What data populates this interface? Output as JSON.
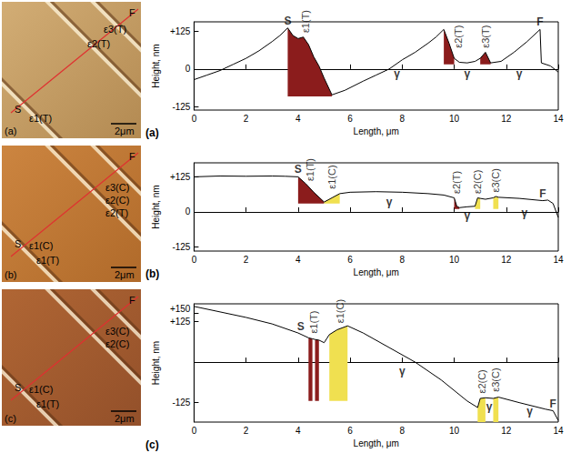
{
  "afm_images": [
    {
      "panel": "(a)",
      "labels": [
        "F",
        "ε3(T)",
        "ε2(T)",
        "S",
        "ε1(T)"
      ],
      "scale_bar": "2μm"
    },
    {
      "panel": "(b)",
      "labels": [
        "F",
        "ε3(C)",
        "ε2(C)",
        "ε2(T)",
        "S",
        "ε1(C)",
        "ε1(T)"
      ],
      "scale_bar": "2μm"
    },
    {
      "panel": "(c)",
      "labels": [
        "F",
        "ε3(C)",
        "ε2(C)",
        "S",
        "ε1(C)",
        "ε1(T)"
      ],
      "scale_bar": "2μm"
    }
  ],
  "chart_data": [
    {
      "type": "line",
      "panel": "(a)",
      "x_label": "Length, μm",
      "y_label": "Height, nm",
      "color": "#000000",
      "x": [
        0,
        0.5,
        1,
        1.5,
        2,
        2.5,
        3,
        3.3,
        3.6,
        3.8,
        4.0,
        4.2,
        4.4,
        4.6,
        4.8,
        5.0,
        5.3,
        5.8,
        6.5,
        7,
        7.5,
        8,
        8.5,
        9,
        9.3,
        9.6,
        9.8,
        10.0,
        10.2,
        10.5,
        10.8,
        11.0,
        11.2,
        11.4,
        11.8,
        12.3,
        12.8,
        13.3,
        13.35,
        13.7,
        14
      ],
      "values": [
        -35,
        -20,
        -5,
        15,
        35,
        60,
        90,
        110,
        135,
        110,
        100,
        105,
        80,
        40,
        10,
        -30,
        -85,
        -70,
        -40,
        -20,
        0,
        30,
        55,
        85,
        105,
        130,
        85,
        35,
        22,
        20,
        25,
        35,
        55,
        20,
        25,
        55,
        90,
        130,
        20,
        10,
        -10
      ],
      "xlim": [
        0,
        14
      ],
      "xticks": [
        0,
        2,
        4,
        6,
        8,
        10,
        12,
        14
      ],
      "ylim": [
        -135,
        155
      ],
      "yticks": [
        {
          "value": 125,
          "label": "+125"
        },
        0,
        -125
      ],
      "regions": [
        {
          "label": "ε1(T)",
          "spans": [
            [
              3.6,
              5.3
            ]
          ],
          "base": -90,
          "color": "#8b1c1c",
          "label_at": [
            4.3,
            110
          ]
        },
        {
          "label": "ε2(T)",
          "spans": [
            [
              9.6,
              10.0
            ]
          ],
          "base": 15,
          "color": "#8b1c1c",
          "label_at": [
            10.15,
            60
          ]
        },
        {
          "label": "ε3(T)",
          "spans": [
            [
              11.0,
              11.4
            ]
          ],
          "base": 15,
          "color": "#8b1c1c",
          "label_at": [
            11.2,
            60
          ]
        }
      ],
      "annotations": [
        {
          "text": "S",
          "x": 3.6,
          "y": 135
        },
        {
          "text": "F",
          "x": 13.3,
          "y": 130
        },
        {
          "text": "γ",
          "x": 7.8,
          "y": -40
        },
        {
          "text": "γ",
          "x": 10.5,
          "y": -40
        },
        {
          "text": "γ",
          "x": 12.5,
          "y": -40
        }
      ]
    },
    {
      "type": "line",
      "panel": "(b)",
      "x_label": "Length, μm",
      "y_label": "Height, nm",
      "color": "#000000",
      "x": [
        0,
        1,
        2,
        3,
        3.5,
        4.0,
        4.3,
        4.6,
        5.0,
        5.3,
        5.6,
        6,
        7,
        8,
        9,
        9.6,
        10.0,
        10.1,
        10.2,
        10.5,
        10.8,
        10.9,
        11.0,
        11.2,
        11.5,
        11.6,
        11.7,
        12.5,
        13.4,
        13.6,
        13.8,
        14
      ],
      "values": [
        125,
        128,
        127,
        128,
        127,
        125,
        100,
        70,
        35,
        50,
        65,
        70,
        72,
        70,
        65,
        60,
        50,
        20,
        15,
        18,
        20,
        50,
        48,
        45,
        50,
        55,
        52,
        48,
        40,
        42,
        30,
        -20
      ],
      "xlim": [
        0,
        14
      ],
      "xticks": [
        0,
        2,
        4,
        6,
        8,
        10,
        12,
        14
      ],
      "ylim": [
        -140,
        175
      ],
      "yticks": [
        {
          "value": 125,
          "label": "+125"
        },
        0,
        -125
      ],
      "regions": [
        {
          "label": "ε1(T)",
          "spans": [
            [
              4.0,
              5.0
            ]
          ],
          "base": 30,
          "color": "#8b1c1c",
          "label_at": [
            4.45,
            100
          ]
        },
        {
          "label": "ε1(C)",
          "spans": [
            [
              5.0,
              5.6
            ]
          ],
          "base": 30,
          "color": "#f0e050",
          "label_at": [
            5.3,
            72
          ]
        },
        {
          "label": "ε2(T)",
          "spans": [
            [
              10.0,
              10.2
            ]
          ],
          "base": 10,
          "color": "#8b1c1c",
          "label_at": [
            10.1,
            55
          ]
        },
        {
          "label": "ε2(C)",
          "spans": [
            [
              10.8,
              11.0
            ]
          ],
          "base": 10,
          "color": "#f0e050",
          "label_at": [
            10.9,
            55
          ]
        },
        {
          "label": "ε3(C)",
          "spans": [
            [
              11.5,
              11.7
            ]
          ],
          "base": 10,
          "color": "#f0e050",
          "label_at": [
            11.6,
            60
          ]
        }
      ],
      "annotations": [
        {
          "text": "S",
          "x": 4.0,
          "y": 125
        },
        {
          "text": "F",
          "x": 13.4,
          "y": 40
        },
        {
          "text": "γ",
          "x": 7.5,
          "y": 10
        },
        {
          "text": "γ",
          "x": 10.5,
          "y": -40
        },
        {
          "text": "γ",
          "x": 12.7,
          "y": -30
        }
      ]
    },
    {
      "type": "line",
      "panel": "(c)",
      "x_label": "Length, μm",
      "y_label": "Height, nm",
      "color": "#000000",
      "x": [
        0,
        1,
        2,
        3,
        4,
        4.4,
        4.55,
        4.65,
        4.8,
        5.0,
        5.2,
        5.5,
        5.9,
        6.5,
        7.5,
        8.5,
        9.5,
        10.5,
        10.9,
        11.0,
        11.2,
        11.5,
        11.7,
        12.5,
        13.5,
        13.8,
        14
      ],
      "values": [
        172,
        155,
        138,
        118,
        90,
        75,
        72,
        70,
        68,
        60,
        85,
        100,
        112,
        90,
        45,
        0,
        -55,
        -120,
        -140,
        -112,
        -110,
        -112,
        -108,
        -125,
        -145,
        -150,
        -180
      ],
      "xlim": [
        0,
        14
      ],
      "xticks": [
        0,
        2,
        4,
        6,
        8,
        10,
        12,
        14
      ],
      "ylim": [
        -185,
        180
      ],
      "yticks": [
        {
          "value": 150,
          "label": "+150"
        },
        {
          "value": 125,
          "label": "+125"
        },
        -125
      ],
      "regions": [
        {
          "label": "ε1(T)",
          "spans": [
            [
              4.4,
              4.55
            ],
            [
              4.65,
              4.8
            ]
          ],
          "base": -120,
          "color": "#8b1c1c",
          "label_at": [
            4.6,
            80
          ]
        },
        {
          "label": "ε1(C)",
          "spans": [
            [
              5.2,
              5.9
            ]
          ],
          "base": -120,
          "color": "#f0e050",
          "label_at": [
            5.6,
            112
          ]
        },
        {
          "label": "ε2(C)",
          "spans": [
            [
              10.9,
              11.2
            ]
          ],
          "base": -185,
          "color": "#f0e050",
          "label_at": [
            11.05,
            -105
          ]
        },
        {
          "label": "ε3(C)",
          "spans": [
            [
              11.5,
              11.7
            ]
          ],
          "base": -185,
          "color": "#f0e050",
          "label_at": [
            11.6,
            -100
          ]
        }
      ],
      "annotations": [
        {
          "text": "S",
          "x": 4.1,
          "y": 88
        },
        {
          "text": "F",
          "x": 13.8,
          "y": -150
        },
        {
          "text": "γ",
          "x": 8,
          "y": -50
        },
        {
          "text": "γ",
          "x": 11.35,
          "y": -160
        },
        {
          "text": "γ",
          "x": 12.9,
          "y": -175
        }
      ]
    }
  ]
}
